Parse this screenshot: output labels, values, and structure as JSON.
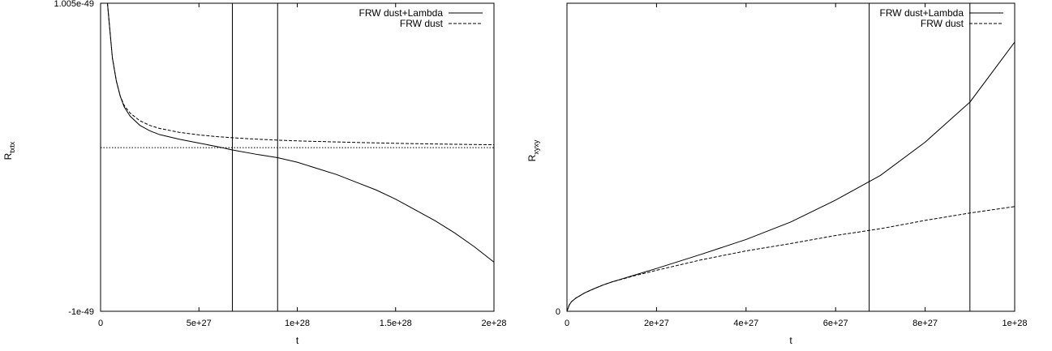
{
  "chart_data": [
    {
      "type": "line",
      "xlabel": "t",
      "ylabel": "R",
      "ylabel_sub": "txtx",
      "x_ticks": [
        "0",
        "5e+27",
        "1e+28",
        "1.5e+28",
        "2e+28"
      ],
      "y_ticks": [
        "-1e-49",
        "1.005e-49"
      ],
      "xlim": [
        0,
        2e+28
      ],
      "ylim": [
        -1e-49,
        1.005e-49
      ],
      "grid": false,
      "legend_position": "top-right",
      "series": [
        {
          "name": "FRW dust+Lambda",
          "style": "solid",
          "x": [
            3.5e+26,
            6e+26,
            8e+26,
            1e+27,
            1.2e+27,
            1.5e+27,
            2e+27,
            2.5e+27,
            3e+27,
            4e+27,
            5e+27,
            6e+27,
            6.7e+27,
            8e+27,
            9e+27,
            1e+28,
            1.1e+28,
            1.2e+28,
            1.3e+28,
            1.4e+28,
            1.5e+28,
            1.6e+28,
            1.7e+28,
            1.8e+28,
            1.9e+28,
            2e+28
          ],
          "y": [
            1.005e-49,
            6.5e-50,
            5e-50,
            4e-50,
            3.3e-50,
            2.7e-50,
            2.1e-50,
            1.75e-50,
            1.5e-50,
            1.2e-50,
            9.5e-51,
            7e-51,
            5e-51,
            2e-51,
            0,
            -3e-51,
            -7e-51,
            -1.1e-50,
            -1.6e-50,
            -2.1e-50,
            -2.7e-50,
            -3.4e-50,
            -4.1e-50,
            -4.9e-50,
            -5.8e-50,
            -6.8e-50
          ]
        },
        {
          "name": "FRW dust",
          "style": "dashed",
          "x": [
            3.5e+26,
            6e+26,
            8e+26,
            1e+27,
            1.2e+27,
            1.5e+27,
            2e+27,
            2.5e+27,
            3e+27,
            4e+27,
            5e+27,
            6e+27,
            7e+27,
            8e+27,
            9e+27,
            1e+28,
            1.2e+28,
            1.4e+28,
            1.6e+28,
            1.8e+28,
            2e+28
          ],
          "y": [
            1.005e-49,
            6.5e-50,
            5e-50,
            4e-50,
            3.4e-50,
            2.9e-50,
            2.4e-50,
            2.1e-50,
            1.9e-50,
            1.65e-50,
            1.48e-50,
            1.36e-50,
            1.27e-50,
            1.2e-50,
            1.14e-50,
            1.09e-50,
            1.02e-50,
            9.6e-51,
            9.1e-51,
            8.7e-51,
            8.4e-51
          ]
        }
      ],
      "hlines": [
        {
          "y": 6.5e-51,
          "style": "dotted"
        }
      ],
      "vlines": [
        6.7e+27,
        9e+27
      ]
    },
    {
      "type": "line",
      "xlabel": "t",
      "ylabel": "R",
      "ylabel_sub": "xyxy",
      "x_ticks": [
        "0",
        "2e+27",
        "4e+27",
        "6e+27",
        "8e+27",
        "1e+28"
      ],
      "y_ticks": [
        "0"
      ],
      "xlim": [
        0,
        1e+28
      ],
      "ylim": [
        0,
        1
      ],
      "grid": false,
      "legend_position": "top-right",
      "series": [
        {
          "name": "FRW dust+Lambda",
          "style": "solid",
          "x": [
            0,
            5e+25,
            1e+26,
            2e+26,
            4e+26,
            6e+26,
            8e+26,
            1e+27,
            1.5e+27,
            2e+27,
            3e+27,
            4e+27,
            5e+27,
            6e+27,
            7e+27,
            8e+27,
            9e+27,
            1e+28
          ],
          "y": [
            0,
            0.02,
            0.031,
            0.043,
            0.06,
            0.073,
            0.085,
            0.095,
            0.117,
            0.139,
            0.185,
            0.233,
            0.29,
            0.361,
            0.441,
            0.549,
            0.679,
            0.874
          ]
        },
        {
          "name": "FRW dust",
          "style": "dashed",
          "x": [
            0,
            5e+25,
            1e+26,
            2e+26,
            4e+26,
            6e+26,
            8e+26,
            1e+27,
            1.5e+27,
            2e+27,
            3e+27,
            4e+27,
            5e+27,
            6e+27,
            7e+27,
            8e+27,
            9e+27,
            1e+28
          ],
          "y": [
            0,
            0.02,
            0.031,
            0.043,
            0.06,
            0.073,
            0.085,
            0.095,
            0.115,
            0.133,
            0.167,
            0.196,
            0.22,
            0.246,
            0.268,
            0.295,
            0.319,
            0.34
          ]
        }
      ],
      "vlines": [
        6.75e+27,
        9e+27
      ]
    }
  ]
}
